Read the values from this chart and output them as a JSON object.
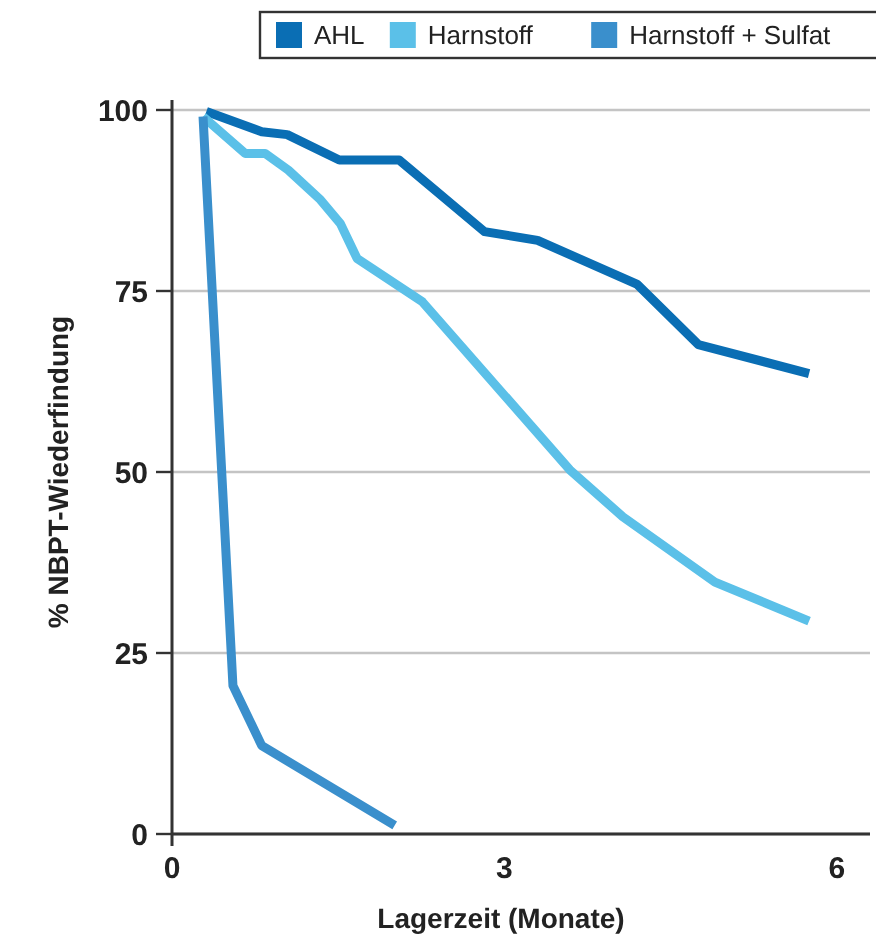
{
  "chart_data": {
    "type": "line",
    "xlabel": "Lagerzeit (Monate)",
    "ylabel": "% NBPT-Wiederfindung",
    "xlim": [
      0,
      6.3
    ],
    "xticks": [
      0,
      3,
      6
    ],
    "ylim": [
      0,
      100
    ],
    "yticks": [
      0,
      25,
      50,
      75,
      100
    ],
    "grid": "y",
    "legend": "top",
    "line_style": "solid",
    "marker": "none",
    "series": [
      {
        "name": "AHL",
        "color": "#0a6eb4",
        "x": [
          0.31,
          0.81,
          1.04,
          1.51,
          2.05,
          2.82,
          3.3,
          4.2,
          4.75,
          5.75
        ],
        "values": [
          99.8,
          97,
          96.6,
          93.1,
          93.1,
          83.2,
          82,
          75.9,
          67.6,
          63.6
        ]
      },
      {
        "name": "Harnstoff",
        "color": "#5bc0e8",
        "x": [
          0.28,
          0.66,
          0.84,
          1.05,
          1.34,
          1.52,
          1.67,
          2.26,
          3.59,
          4.07,
          4.9,
          5.75
        ],
        "values": [
          99.1,
          94,
          94,
          91.7,
          87.6,
          84.3,
          79.5,
          73.5,
          50.3,
          43.8,
          34.8,
          29.4
        ]
      },
      {
        "name": "Harnstoff + Sulfat",
        "color": "#3a8fcc",
        "x": [
          0.28,
          0.55,
          0.81,
          2.01
        ],
        "values": [
          99.1,
          20.5,
          12.2,
          1.2
        ]
      }
    ]
  }
}
